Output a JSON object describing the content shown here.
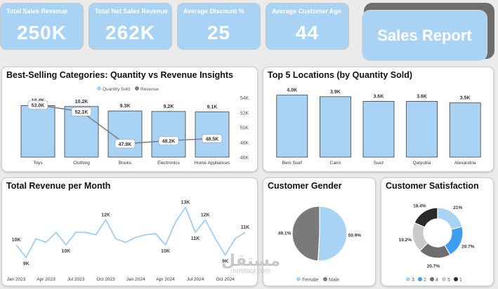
{
  "kpis": [
    {
      "label": "Total Sales Revenue",
      "value": "250K"
    },
    {
      "label": "Total Net Sales Revenue",
      "value": "262K"
    },
    {
      "label": "Average Discount %",
      "value": "25"
    },
    {
      "label": "Average Customer Age",
      "value": "44"
    }
  ],
  "report_title": "Sales Report",
  "watermark": {
    "arabic": "مستقل",
    "site": "mostaql.com"
  },
  "colors": {
    "accent": "#a9d3f5",
    "bar": "#a9d3f5",
    "line": "#808080",
    "line_blue": "#9fcdf3",
    "dark": "#333333"
  },
  "chart_data": [
    {
      "id": "categories",
      "type": "bar",
      "title": "Best-Selling Categories: Quantity vs Revenue Insights",
      "legend": [
        "Quantity Sold",
        "Revenue"
      ],
      "legend_position": "top",
      "categories": [
        "Toys",
        "Clothing",
        "Books",
        "Electronics",
        "Home Appliances"
      ],
      "series": [
        {
          "name": "Quantity Sold",
          "values": [
            10.4,
            10.2,
            9.3,
            9.2,
            9.1
          ],
          "labels": [
            "10.4K",
            "10.2K",
            "9.3K",
            "9.2K",
            "9.1K"
          ]
        },
        {
          "name": "Revenue",
          "values": [
            53.0,
            52.1,
            47.8,
            48.2,
            48.5
          ],
          "labels": [
            "53.0K",
            "52.1K",
            "47.8K",
            "48.2K",
            "48.5K"
          ]
        }
      ],
      "y2_ticks": [
        "54K",
        "52K",
        "50K",
        "48K",
        "46K"
      ],
      "y2_range": [
        46,
        54
      ]
    },
    {
      "id": "locations",
      "type": "bar",
      "title": "Top 5 Locations (by Quantity Sold)",
      "categories": [
        "Beni Suef",
        "Cairo",
        "Suez",
        "Qalyubia",
        "Alexandria"
      ],
      "values": [
        4.0,
        3.9,
        3.6,
        3.6,
        3.5
      ],
      "labels": [
        "4.0K",
        "3.9K",
        "3.6K",
        "3.6K",
        "3.5K"
      ]
    },
    {
      "id": "monthly",
      "type": "line",
      "title": "Total Revenue per Month",
      "x_ticks": [
        "Jan 2023",
        "Apr 2023",
        "Jul 2023",
        "Oct 2023",
        "Jan 2024",
        "Apr 2024",
        "Jul 2024",
        "Oct 2024"
      ],
      "values": [
        10.0,
        9.0,
        10.5,
        10.2,
        11.0,
        10.0,
        11.0,
        11.0,
        10.8,
        12.0,
        10.5,
        10.2,
        10.6,
        10.8,
        10.9,
        10.0,
        11.8,
        13.0,
        11.0,
        12.0,
        10.5,
        9.2,
        10.5,
        11.0
      ],
      "point_labels": [
        {
          "index": 0,
          "text": "10K"
        },
        {
          "index": 1,
          "text": "9K"
        },
        {
          "index": 5,
          "text": "10K"
        },
        {
          "index": 9,
          "text": "12K"
        },
        {
          "index": 15,
          "text": "10K"
        },
        {
          "index": 17,
          "text": "13K"
        },
        {
          "index": 18,
          "text": "11K"
        },
        {
          "index": 19,
          "text": "12K"
        },
        {
          "index": 21,
          "text": "9K"
        },
        {
          "index": 23,
          "text": "11K"
        }
      ]
    },
    {
      "id": "gender",
      "type": "pie",
      "title": "Customer Gender",
      "slices": [
        {
          "name": "Female",
          "value": 50.9,
          "label": "50.9%",
          "color": "#a9d3f5"
        },
        {
          "name": "Male",
          "value": 49.1,
          "label": "49.1%",
          "color": "#7a7a7a"
        }
      ],
      "legend_position": "bottom"
    },
    {
      "id": "satisfaction",
      "type": "pie",
      "title": "Customer Satisfaction",
      "donut": true,
      "slices": [
        {
          "name": "3",
          "value": 21.0,
          "label": "21%",
          "color": "#a9d3f5"
        },
        {
          "name": "2",
          "value": 20.7,
          "label": "20.7%",
          "color": "#3d9df0"
        },
        {
          "name": "4",
          "value": 20.7,
          "label": "20.7%",
          "color": "#6e6e6e"
        },
        {
          "name": "5",
          "value": 19.2,
          "label": "19.2%",
          "color": "#c9c9c9"
        },
        {
          "name": "1",
          "value": 18.4,
          "label": "18.4%",
          "color": "#2a2a2a"
        }
      ],
      "legend_position": "bottom"
    }
  ]
}
